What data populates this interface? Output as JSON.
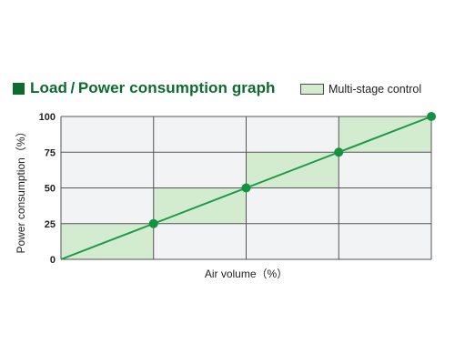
{
  "title": "Load / Power consumption graph",
  "legend": {
    "label": "Multi-stage control"
  },
  "colors": {
    "accent": "#0d6b2f",
    "line": "#1d9a47",
    "marker": "#13933f",
    "shade": "#d3ebcf",
    "plot_bg": "#f2f3f5",
    "grid": "#555555"
  },
  "chart_data": {
    "type": "line",
    "title": "Load / Power consumption graph",
    "xlabel": "Air volume（%）",
    "ylabel": "Power consumption（%）",
    "xlim": [
      0,
      100
    ],
    "ylim": [
      0,
      100
    ],
    "yticks": [
      "0",
      "25",
      "50",
      "75",
      "100"
    ],
    "x_grid": [
      0,
      25,
      50,
      75,
      100
    ],
    "grid": true,
    "legend_position": "top-right",
    "series": [
      {
        "x": [
          0,
          25,
          50,
          75,
          100
        ],
        "values": [
          0,
          25,
          50,
          75,
          100
        ],
        "markers": [
          25,
          50,
          75,
          100
        ]
      }
    ],
    "shaded_regions": [
      {
        "x_from": 0,
        "x_to": 25,
        "y_from": 0,
        "y_to": 25
      },
      {
        "x_from": 25,
        "x_to": 50,
        "y_from": 25,
        "y_to": 50
      },
      {
        "x_from": 50,
        "x_to": 75,
        "y_from": 50,
        "y_to": 75
      },
      {
        "x_from": 75,
        "x_to": 100,
        "y_from": 75,
        "y_to": 100
      }
    ]
  }
}
